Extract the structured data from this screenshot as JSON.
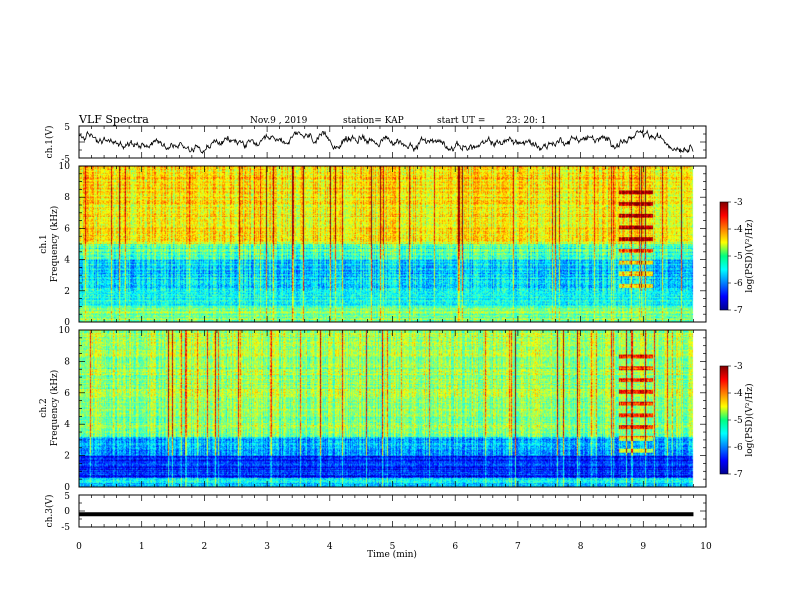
{
  "header": {
    "title": "VLF Spectra",
    "date": "Nov.9 , 2019",
    "station": "station= KAP",
    "start": "start UT =",
    "start_time": "23: 20: 1"
  },
  "chart_data": [
    {
      "type": "line",
      "ylabel": "ch.1(V)",
      "xlim": [
        0,
        10
      ],
      "ylim": [
        -5,
        5
      ],
      "yticks": [
        "5",
        "-5"
      ],
      "description_series": "noisy waveform around 0 V",
      "line_color": "#000000"
    },
    {
      "type": "heatmap",
      "ylabel_line1": "ch.1",
      "ylabel_line2": "Frequency (kHz)",
      "xlim": [
        0,
        10
      ],
      "ylim": [
        0,
        10
      ],
      "yticks": [
        "10",
        "8",
        "6",
        "4",
        "2",
        "0"
      ],
      "data_end_min": 9.8,
      "colorbar": {
        "label": "log(PSD)(V²/Hz)",
        "ticks": [
          "-3",
          "-4",
          "-5",
          "-6",
          "-7"
        ],
        "range": [
          -7,
          -3
        ]
      }
    },
    {
      "type": "heatmap",
      "ylabel_line1": "ch.2",
      "ylabel_line2": "Frequency (kHz)",
      "xlim": [
        0,
        10
      ],
      "ylim": [
        0,
        10
      ],
      "yticks": [
        "10",
        "8",
        "6",
        "4",
        "2",
        "0"
      ],
      "data_end_min": 9.8,
      "colorbar": {
        "label": "log(PSD)(V²/Hz)",
        "ticks": [
          "-3",
          "-4",
          "-5",
          "-6",
          "-7"
        ],
        "range": [
          -7,
          -3
        ]
      }
    },
    {
      "type": "line",
      "ylabel": "ch.3(V)",
      "xlim": [
        0,
        10
      ],
      "ylim": [
        -5,
        5
      ],
      "yticks": [
        "5",
        "0",
        "-5"
      ],
      "constant_value": -1,
      "line_color": "#000000"
    }
  ],
  "x_axis": {
    "label": "Time (min)",
    "ticks": [
      "0",
      "1",
      "2",
      "3",
      "4",
      "5",
      "6",
      "7",
      "8",
      "9",
      "10"
    ]
  }
}
